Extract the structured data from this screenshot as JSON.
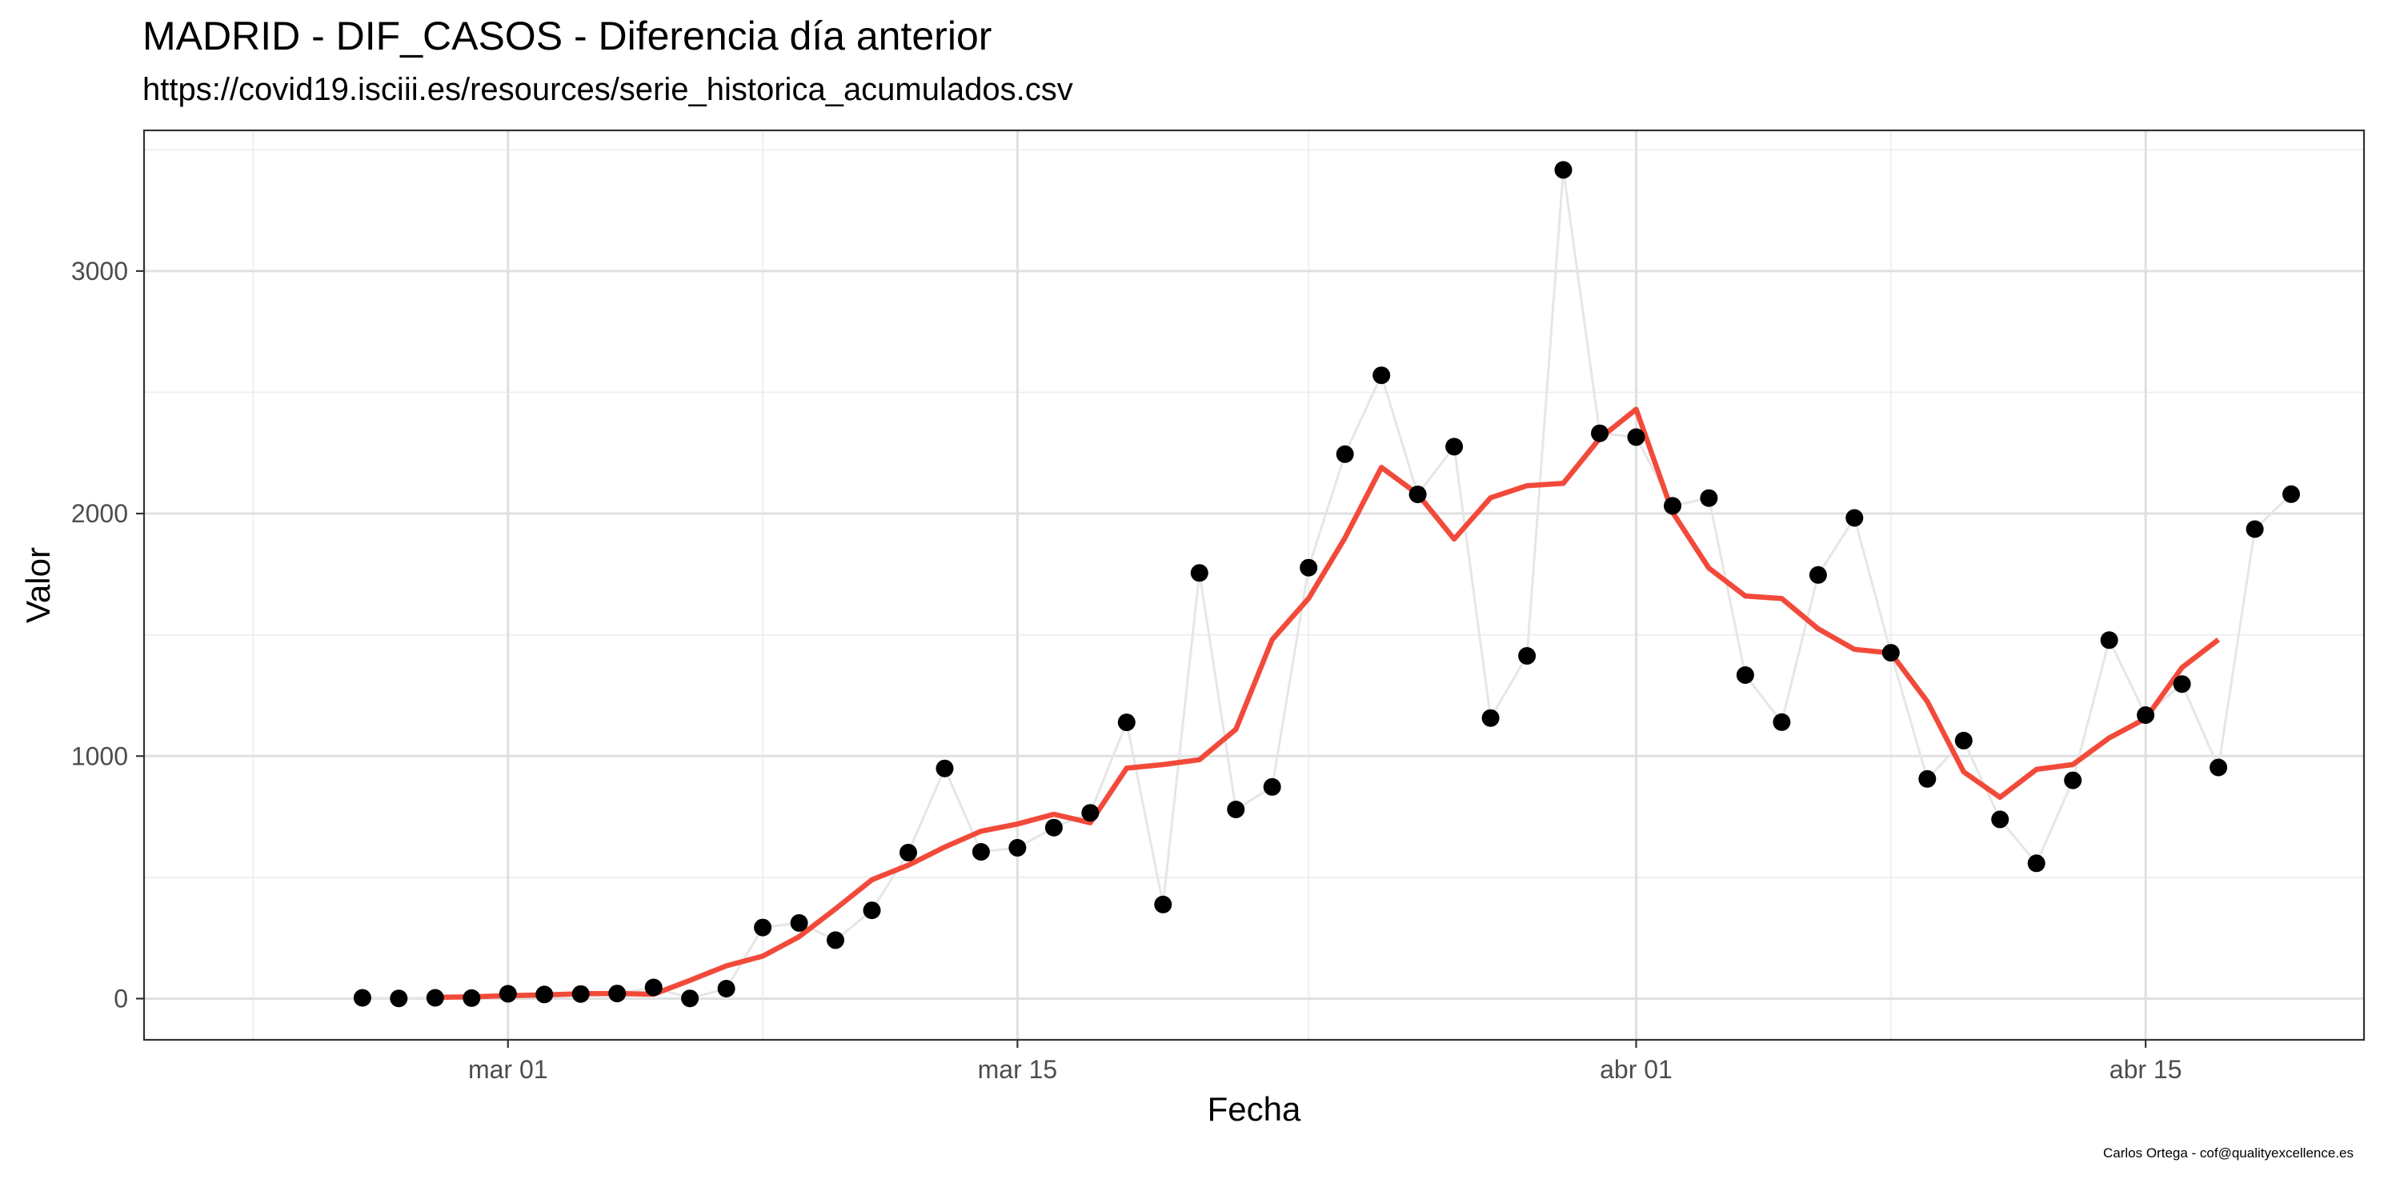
{
  "chart_data": {
    "type": "scatter",
    "title": "MADRID - DIF_CASOS - Diferencia día anterior",
    "subtitle": "https://covid19.isciii.es/resources/serie_historica_acumulados.csv",
    "caption": "Carlos Ortega - cof@qualityexcellence.es",
    "xlabel": "Fecha",
    "ylabel": "Valor",
    "xlim": [
      "2020-02-20",
      "2020-04-21"
    ],
    "ylim": [
      -170,
      3580
    ],
    "x_ticks": [
      {
        "date": "2020-03-01",
        "label": "mar 01"
      },
      {
        "date": "2020-03-15",
        "label": "mar 15"
      },
      {
        "date": "2020-04-01",
        "label": "abr 01"
      },
      {
        "date": "2020-04-15",
        "label": "abr 15"
      }
    ],
    "x_minor_ticks": [
      "2020-02-23",
      "2020-03-08",
      "2020-03-23",
      "2020-04-08"
    ],
    "y_ticks": [
      0,
      1000,
      2000,
      3000
    ],
    "y_minor_ticks": [
      500,
      1500,
      2500,
      3500
    ],
    "grid": true,
    "series": [
      {
        "role": "observed-points-and-line",
        "color": "#000000",
        "line_color": "#e6e6e6",
        "x": [
          "2020-02-26",
          "2020-02-27",
          "2020-02-28",
          "2020-02-29",
          "2020-03-01",
          "2020-03-02",
          "2020-03-03",
          "2020-03-04",
          "2020-03-05",
          "2020-03-06",
          "2020-03-07",
          "2020-03-08",
          "2020-03-09",
          "2020-03-10",
          "2020-03-11",
          "2020-03-12",
          "2020-03-13",
          "2020-03-14",
          "2020-03-15",
          "2020-03-16",
          "2020-03-17",
          "2020-03-18",
          "2020-03-19",
          "2020-03-20",
          "2020-03-21",
          "2020-03-22",
          "2020-03-23",
          "2020-03-24",
          "2020-03-25",
          "2020-03-26",
          "2020-03-27",
          "2020-03-28",
          "2020-03-29",
          "2020-03-30",
          "2020-03-31",
          "2020-04-01",
          "2020-04-02",
          "2020-04-03",
          "2020-04-04",
          "2020-04-05",
          "2020-04-06",
          "2020-04-07",
          "2020-04-08",
          "2020-04-09",
          "2020-04-10",
          "2020-04-11",
          "2020-04-12",
          "2020-04-13",
          "2020-04-14",
          "2020-04-15",
          "2020-04-16",
          "2020-04-17",
          "2020-04-18",
          "2020-04-19"
        ],
        "values": [
          3,
          1,
          3,
          2,
          20,
          17,
          19,
          21,
          46,
          1,
          41,
          293,
          312,
          241,
          364,
          602,
          949,
          605,
          622,
          705,
          766,
          1139,
          388,
          1755,
          780,
          873,
          1777,
          2245,
          2570,
          2079,
          2276,
          1157,
          1413,
          3417,
          2331,
          2315,
          2032,
          2064,
          1334,
          1140,
          1747,
          1982,
          1426,
          906,
          1064,
          739,
          558,
          900,
          1478,
          1169,
          1297,
          953,
          1936,
          2080
        ]
      },
      {
        "role": "smoothed-line",
        "color": "#f24a3a",
        "x": [
          "2020-02-28",
          "2020-02-29",
          "2020-03-01",
          "2020-03-02",
          "2020-03-03",
          "2020-03-04",
          "2020-03-05",
          "2020-03-06",
          "2020-03-07",
          "2020-03-08",
          "2020-03-09",
          "2020-03-10",
          "2020-03-11",
          "2020-03-12",
          "2020-03-13",
          "2020-03-14",
          "2020-03-15",
          "2020-03-16",
          "2020-03-17",
          "2020-03-18",
          "2020-03-19",
          "2020-03-20",
          "2020-03-21",
          "2020-03-22",
          "2020-03-23",
          "2020-03-24",
          "2020-03-25",
          "2020-03-26",
          "2020-03-27",
          "2020-03-28",
          "2020-03-29",
          "2020-03-30",
          "2020-03-31",
          "2020-04-01",
          "2020-04-02",
          "2020-04-03",
          "2020-04-04",
          "2020-04-05",
          "2020-04-06",
          "2020-04-07",
          "2020-04-08",
          "2020-04-09",
          "2020-04-10",
          "2020-04-11",
          "2020-04-12",
          "2020-04-13",
          "2020-04-14",
          "2020-04-15",
          "2020-04-16",
          "2020-04-17"
        ],
        "values": [
          5,
          7,
          12,
          15,
          20,
          21,
          18,
          75,
          135,
          175,
          255,
          370,
          490,
          550,
          625,
          690,
          720,
          760,
          725,
          950,
          965,
          985,
          1110,
          1480,
          1650,
          1900,
          2190,
          2080,
          1895,
          2065,
          2115,
          2125,
          2310,
          2430,
          2005,
          1775,
          1660,
          1650,
          1525,
          1440,
          1425,
          1225,
          935,
          830,
          945,
          965,
          1075,
          1155,
          1365,
          1480
        ]
      }
    ]
  }
}
